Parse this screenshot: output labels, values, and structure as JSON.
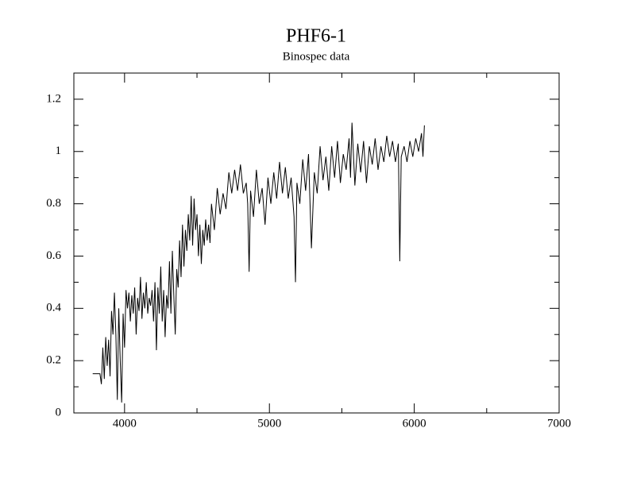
{
  "chart_data": {
    "type": "line",
    "title": "PHF6-1",
    "subtitle": "Binospec data",
    "x": [
      3780,
      3830,
      3840,
      3850,
      3860,
      3870,
      3880,
      3890,
      3900,
      3910,
      3920,
      3930,
      3940,
      3950,
      3960,
      3970,
      3980,
      3990,
      4000,
      4010,
      4020,
      4030,
      4040,
      4050,
      4060,
      4070,
      4080,
      4090,
      4100,
      4110,
      4120,
      4130,
      4140,
      4150,
      4160,
      4170,
      4180,
      4190,
      4200,
      4210,
      4220,
      4230,
      4240,
      4250,
      4260,
      4270,
      4280,
      4290,
      4300,
      4310,
      4320,
      4330,
      4340,
      4350,
      4360,
      4370,
      4380,
      4390,
      4400,
      4410,
      4420,
      4430,
      4440,
      4450,
      4460,
      4470,
      4480,
      4490,
      4500,
      4510,
      4520,
      4530,
      4540,
      4550,
      4560,
      4570,
      4580,
      4590,
      4600,
      4620,
      4640,
      4660,
      4680,
      4700,
      4720,
      4740,
      4760,
      4780,
      4800,
      4820,
      4840,
      4850,
      4860,
      4870,
      4890,
      4910,
      4930,
      4950,
      4970,
      4990,
      5010,
      5030,
      5050,
      5070,
      5090,
      5110,
      5130,
      5150,
      5170,
      5180,
      5190,
      5210,
      5230,
      5250,
      5270,
      5290,
      5310,
      5330,
      5350,
      5370,
      5390,
      5410,
      5430,
      5450,
      5470,
      5490,
      5510,
      5530,
      5550,
      5560,
      5570,
      5590,
      5610,
      5630,
      5650,
      5670,
      5690,
      5710,
      5730,
      5750,
      5770,
      5790,
      5810,
      5830,
      5850,
      5870,
      5890,
      5900,
      5910,
      5930,
      5950,
      5970,
      5990,
      6010,
      6030,
      6050,
      6060,
      6070
    ],
    "values": [
      0.15,
      0.15,
      0.11,
      0.25,
      0.13,
      0.29,
      0.18,
      0.28,
      0.14,
      0.39,
      0.3,
      0.46,
      0.3,
      0.05,
      0.4,
      0.2,
      0.04,
      0.38,
      0.25,
      0.47,
      0.4,
      0.46,
      0.35,
      0.45,
      0.38,
      0.48,
      0.3,
      0.44,
      0.39,
      0.52,
      0.36,
      0.46,
      0.4,
      0.5,
      0.38,
      0.44,
      0.41,
      0.47,
      0.35,
      0.5,
      0.24,
      0.48,
      0.38,
      0.56,
      0.35,
      0.47,
      0.29,
      0.45,
      0.4,
      0.58,
      0.38,
      0.62,
      0.45,
      0.3,
      0.55,
      0.48,
      0.66,
      0.52,
      0.72,
      0.56,
      0.7,
      0.62,
      0.76,
      0.66,
      0.83,
      0.64,
      0.82,
      0.7,
      0.76,
      0.6,
      0.72,
      0.57,
      0.7,
      0.64,
      0.74,
      0.66,
      0.72,
      0.65,
      0.8,
      0.7,
      0.86,
      0.76,
      0.84,
      0.78,
      0.92,
      0.84,
      0.93,
      0.85,
      0.95,
      0.84,
      0.88,
      0.8,
      0.54,
      0.85,
      0.75,
      0.93,
      0.8,
      0.86,
      0.72,
      0.9,
      0.8,
      0.92,
      0.82,
      0.96,
      0.84,
      0.94,
      0.82,
      0.9,
      0.75,
      0.5,
      0.88,
      0.8,
      0.97,
      0.85,
      0.99,
      0.63,
      0.92,
      0.84,
      1.02,
      0.89,
      0.98,
      0.85,
      1.02,
      0.9,
      1.04,
      0.88,
      0.99,
      0.93,
      1.05,
      0.9,
      1.11,
      0.87,
      1.03,
      0.92,
      1.04,
      0.88,
      1.02,
      0.95,
      1.05,
      0.93,
      1.02,
      0.96,
      1.06,
      0.98,
      1.04,
      0.96,
      1.03,
      0.58,
      0.98,
      1.02,
      0.96,
      1.04,
      0.98,
      1.05,
      1.0,
      1.07,
      0.98,
      1.1
    ],
    "color": "#000000",
    "xlim": [
      3650,
      7000
    ],
    "xticks": [
      4000,
      5000,
      6000,
      7000
    ],
    "x_minor_ticks": [
      4500,
      5500,
      6500
    ],
    "ylim": [
      0,
      1.3
    ],
    "yticks": [
      0,
      0.2,
      0.4,
      0.6,
      0.8,
      1,
      1.2
    ],
    "y_minor_ticks": [
      0.1,
      0.3,
      0.5,
      0.7,
      0.9,
      1.1
    ]
  }
}
